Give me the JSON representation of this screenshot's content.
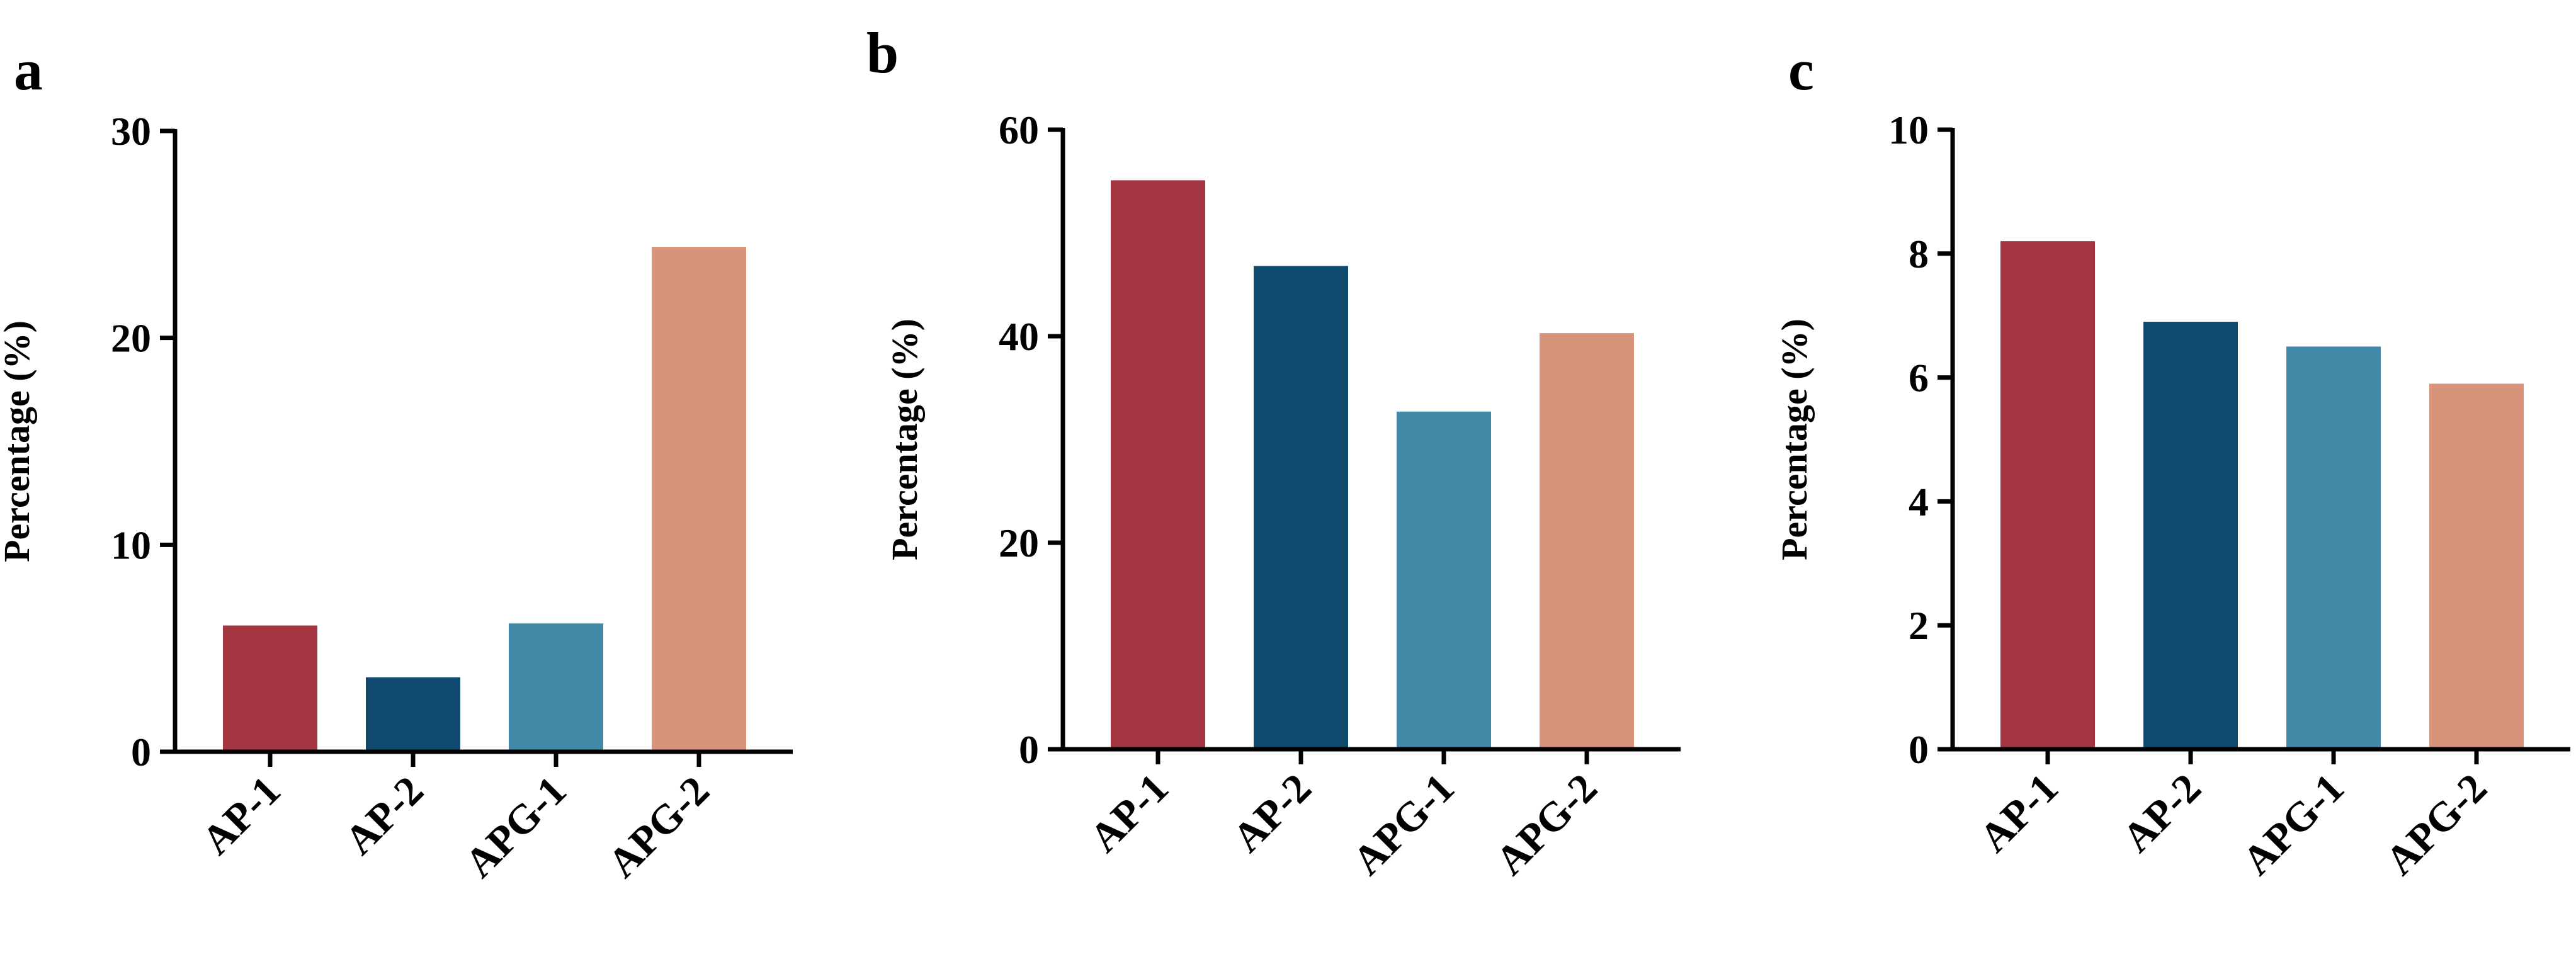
{
  "chart_data": [
    {
      "type": "bar",
      "panel_label": "a",
      "categories": [
        "AP-1",
        "AP-2",
        "APG-1",
        "APG-2"
      ],
      "values": [
        6.1,
        3.6,
        6.2,
        24.4
      ],
      "ylabel": "Percentage (%)",
      "ylim": [
        0,
        30
      ],
      "yticks": [
        0,
        10,
        20,
        30
      ],
      "colors": [
        "#A33640",
        "#0F4A6E",
        "#4389A8",
        "#D8947B"
      ],
      "grid": false,
      "legend": "none"
    },
    {
      "type": "bar",
      "panel_label": "b",
      "categories": [
        "AP-1",
        "AP-2",
        "APG-1",
        "APG-2"
      ],
      "values": [
        55.1,
        46.8,
        32.7,
        40.3
      ],
      "ylabel": "Percentage (%)",
      "ylim": [
        0,
        60
      ],
      "yticks": [
        0,
        20,
        40,
        60
      ],
      "colors": [
        "#A33640",
        "#0F4A6E",
        "#4389A8",
        "#D8947B"
      ],
      "grid": false,
      "legend": "none"
    },
    {
      "type": "bar",
      "panel_label": "c",
      "categories": [
        "AP-1",
        "AP-2",
        "APG-1",
        "APG-2"
      ],
      "values": [
        8.2,
        6.9,
        6.5,
        5.9
      ],
      "ylabel": "Percentage (%)",
      "ylim": [
        0,
        10
      ],
      "yticks": [
        0,
        2,
        4,
        6,
        8,
        10
      ],
      "colors": [
        "#A33640",
        "#0F4A6E",
        "#4389A8",
        "#D8947B"
      ],
      "grid": false,
      "legend": "none"
    }
  ]
}
